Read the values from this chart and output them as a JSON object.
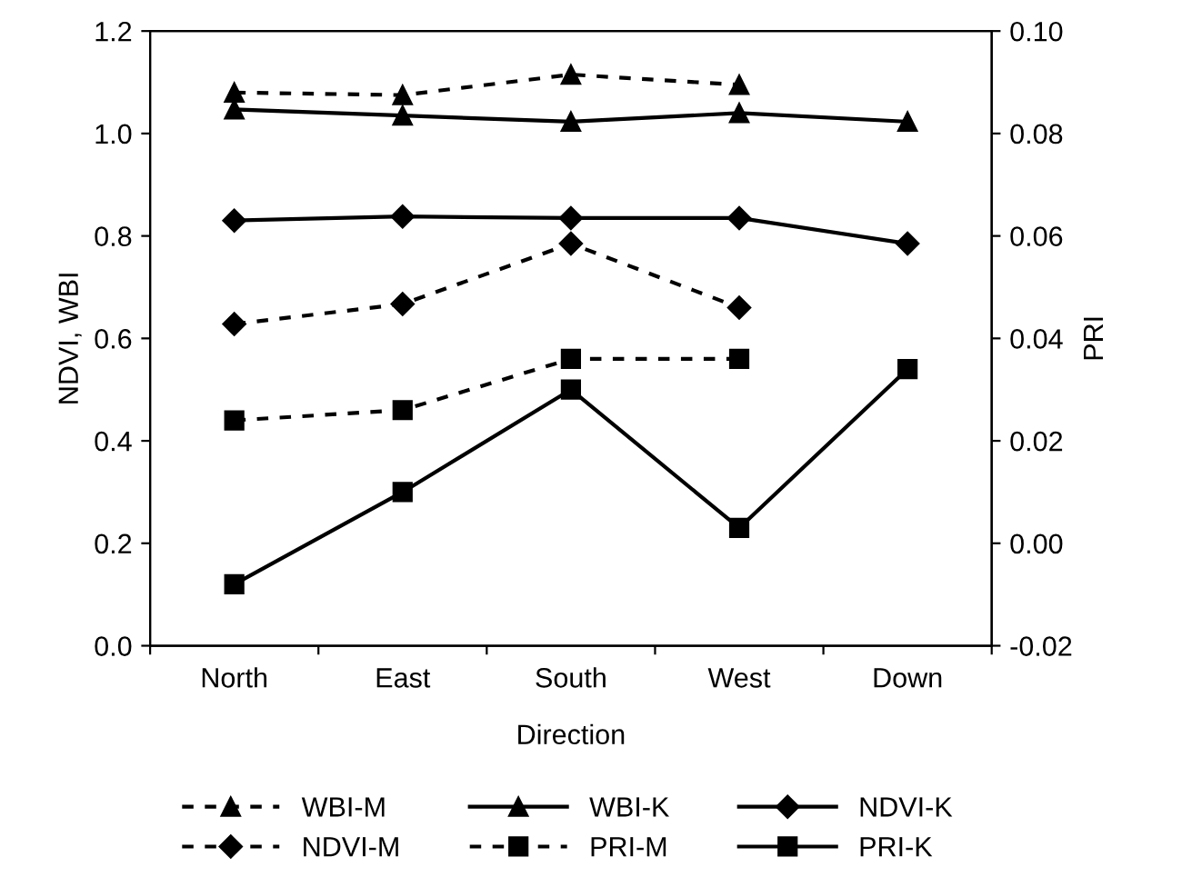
{
  "chart_data": {
    "type": "line",
    "xlabel": "Direction",
    "ylabel": "NDVI, WBI",
    "y2label": "PRI",
    "categories": [
      "North",
      "East",
      "South",
      "West",
      "Down"
    ],
    "ylim": [
      0,
      1.2
    ],
    "yticks": [
      {
        "value": 0,
        "label": "0.0"
      },
      0.2,
      0.4,
      0.6,
      0.8,
      {
        "value": 1,
        "label": "1.0"
      },
      1.2
    ],
    "y2lim": [
      -0.02,
      0.1
    ],
    "y2ticks": [
      {
        "value": -0.02,
        "label": "-0.02"
      },
      {
        "value": 0,
        "label": "0.00"
      },
      {
        "value": 0.02,
        "label": "0.02"
      },
      {
        "value": 0.04,
        "label": "0.04"
      },
      {
        "value": 0.06,
        "label": "0.06"
      },
      {
        "value": 0.08,
        "label": "0.08"
      },
      {
        "value": 0.1,
        "label": "0.10"
      }
    ],
    "grid": false,
    "legend": "bottom",
    "series": [
      {
        "name": "WBI-M",
        "color": "#000000",
        "marker": "triangle",
        "line_style": "dashed",
        "values": [
          1.08,
          1.075,
          1.115,
          1.095,
          null
        ]
      },
      {
        "name": "WBI-K",
        "color": "#000000",
        "marker": "triangle",
        "line_style": "solid",
        "values": [
          1.047,
          1.035,
          1.023,
          1.04,
          1.023
        ]
      },
      {
        "name": "NDVI-K",
        "color": "#000000",
        "marker": "diamond",
        "line_style": "solid",
        "values": [
          0.83,
          0.838,
          0.835,
          0.835,
          0.785
        ]
      },
      {
        "name": "NDVI-M",
        "color": "#000000",
        "marker": "diamond",
        "line_style": "dashed",
        "values": [
          0.628,
          0.667,
          0.785,
          0.66,
          null
        ]
      },
      {
        "name": "PRI-M",
        "color": "#000000",
        "marker": "square",
        "line_style": "dashed",
        "axis": "y2",
        "values": [
          0.024,
          0.026,
          0.036,
          0.036,
          null
        ]
      },
      {
        "name": "PRI-K",
        "color": "#000000",
        "marker": "square",
        "line_style": "solid",
        "axis": "y2",
        "values": [
          -0.008,
          0.01,
          0.03,
          0.003,
          0.034
        ]
      }
    ]
  }
}
